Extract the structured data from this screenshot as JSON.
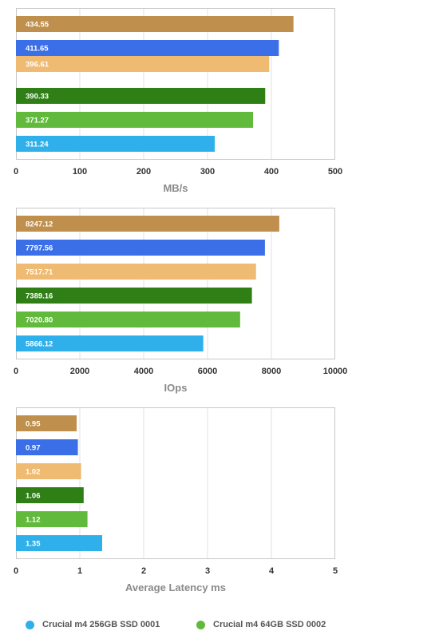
{
  "chart_data": [
    {
      "type": "bar",
      "orientation": "horizontal",
      "xlabel": "MB/s",
      "xlim": [
        0,
        500
      ],
      "xticks": [
        0,
        100,
        200,
        300,
        400,
        500
      ],
      "grid": true,
      "bars": [
        {
          "value": 434.55,
          "label": "434.55",
          "color": "#bf8f4d"
        },
        {
          "value": 411.65,
          "label": "411.65",
          "color": "#3b6fe8"
        },
        {
          "value": 396.61,
          "label": "396.61",
          "color": "#efbb72"
        },
        {
          "value": 390.33,
          "label": "390.33",
          "color": "#2f7e16"
        },
        {
          "value": 371.27,
          "label": "371.27",
          "color": "#61ba3c"
        },
        {
          "value": 311.24,
          "label": "311.24",
          "color": "#2fb0ea"
        }
      ]
    },
    {
      "type": "bar",
      "orientation": "horizontal",
      "xlabel": "IOps",
      "xlim": [
        0,
        10000
      ],
      "xticks": [
        0,
        2000,
        4000,
        6000,
        8000,
        10000
      ],
      "grid": true,
      "bars": [
        {
          "value": 8247.12,
          "label": "8247.12",
          "color": "#bf8f4d"
        },
        {
          "value": 7797.56,
          "label": "7797.56",
          "color": "#3b6fe8"
        },
        {
          "value": 7517.71,
          "label": "7517.71",
          "color": "#efbb72"
        },
        {
          "value": 7389.16,
          "label": "7389.16",
          "color": "#2f7e16"
        },
        {
          "value": 7020.8,
          "label": "7020.80",
          "color": "#61ba3c"
        },
        {
          "value": 5866.12,
          "label": "5866.12",
          "color": "#2fb0ea"
        }
      ]
    },
    {
      "type": "bar",
      "orientation": "horizontal",
      "xlabel": "Average Latency ms",
      "xlim": [
        0,
        5
      ],
      "xticks": [
        0,
        1,
        2,
        3,
        4,
        5
      ],
      "grid": true,
      "bars": [
        {
          "value": 0.95,
          "label": "0.95",
          "color": "#bf8f4d"
        },
        {
          "value": 0.97,
          "label": "0.97",
          "color": "#3b6fe8"
        },
        {
          "value": 1.02,
          "label": "1.02",
          "color": "#efbb72"
        },
        {
          "value": 1.06,
          "label": "1.06",
          "color": "#2f7e16"
        },
        {
          "value": 1.12,
          "label": "1.12",
          "color": "#61ba3c"
        },
        {
          "value": 1.35,
          "label": "1.35",
          "color": "#2fb0ea"
        }
      ]
    }
  ],
  "legend": {
    "items": [
      {
        "label": "Crucial m4 256GB SSD 0001",
        "color": "#2fb0ea"
      },
      {
        "label": "Crucial m4 64GB SSD 0002",
        "color": "#61ba3c"
      }
    ]
  }
}
